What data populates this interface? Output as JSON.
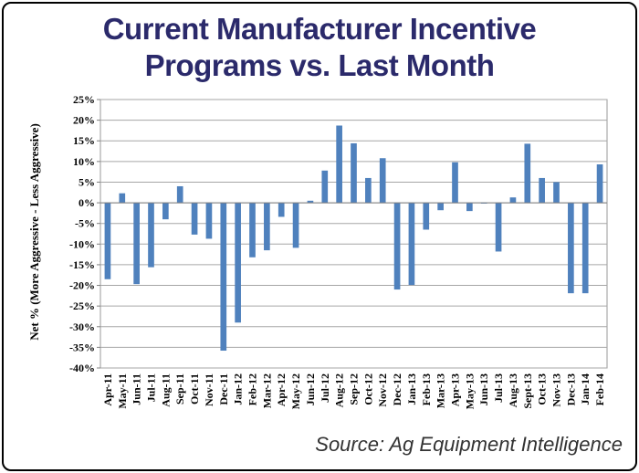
{
  "title_line1": "Current Manufacturer Incentive",
  "title_line2": "Programs vs. Last Month",
  "source": "Source: Ag Equipment Intelligence",
  "chart_data": {
    "type": "bar",
    "title": "Current Manufacturer Incentive Programs vs. Last Month",
    "xlabel": "",
    "ylabel": "Net % (More Aggressive - Less Aggressive)",
    "ylim": [
      -40,
      25
    ],
    "yticks": [
      25,
      20,
      15,
      10,
      5,
      0,
      -5,
      -10,
      -15,
      -20,
      -25,
      -30,
      -35,
      -40
    ],
    "ytick_labels": [
      "25%",
      "20%",
      "15%",
      "10%",
      "5%",
      "0%",
      "-5%",
      "-10%",
      "-15%",
      "-20%",
      "-25%",
      "-30%",
      "-35%",
      "-40%"
    ],
    "grid": true,
    "bar_color": "#4f81bd",
    "categories": [
      "Apr-11",
      "May-11",
      "Jun-11",
      "Jul-11",
      "Aug-11",
      "Sep-11",
      "Oct-11",
      "Nov-11",
      "Dec-11",
      "Jan-12",
      "Feb-12",
      "Mar-12",
      "Apr-12",
      "May-12",
      "Jun-12",
      "Jul-12",
      "Aug-12",
      "Sep-12",
      "Oct-12",
      "Nov-12",
      "Dec-12",
      "Jan-13",
      "Feb-13",
      "Mar-13",
      "Apr-13",
      "May-13",
      "Jun-13",
      "Jul-13",
      "Aug-13",
      "Sept-13",
      "Oct-13",
      "Nov-13",
      "Dec-13",
      "Jan-14",
      "Feb-14"
    ],
    "values": [
      -18.5,
      2.3,
      -19.7,
      -15.6,
      -4.0,
      4.0,
      -7.7,
      -8.7,
      -35.8,
      -29.0,
      -13.2,
      -11.5,
      -3.4,
      -10.9,
      0.5,
      7.8,
      18.7,
      14.4,
      6.0,
      10.8,
      -21.0,
      -19.9,
      -6.5,
      -1.8,
      9.8,
      -2.0,
      -0.2,
      -11.8,
      1.3,
      14.3,
      6.0,
      5.0,
      -21.9,
      -21.9,
      9.3
    ]
  }
}
